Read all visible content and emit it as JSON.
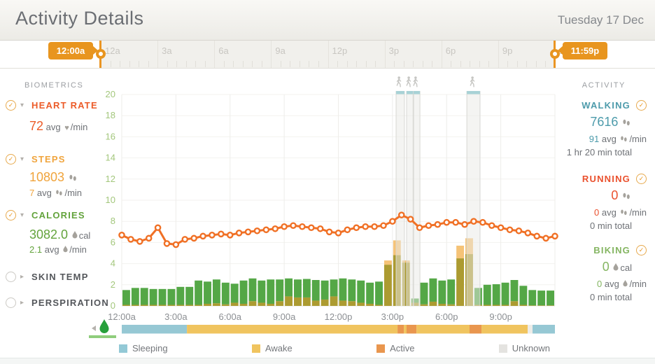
{
  "header": {
    "title": "Activity Details",
    "date": "Tuesday 17 Dec"
  },
  "slider": {
    "start_label": "12:00a",
    "end_label": "11:59p",
    "hour_labels": [
      "12a",
      "3a",
      "6a",
      "9a",
      "12p",
      "3p",
      "6p",
      "9p",
      "12a"
    ]
  },
  "biometrics": {
    "section_label": "BIOMETRICS",
    "heart_rate": {
      "label": "HEART RATE",
      "color": "#ec5b28",
      "value": "72",
      "avg_word": "avg",
      "unit": "/min",
      "checked": true
    },
    "steps": {
      "label": "STEPS",
      "color": "#f0a43c",
      "value": "10803",
      "avg_value": "7",
      "avg_word": "avg",
      "unit": "/min",
      "checked": true
    },
    "calories": {
      "label": "CALORIES",
      "color": "#63a33c",
      "value": "3082.0",
      "value_unit": "cal",
      "avg_value": "2.1",
      "avg_word": "avg",
      "unit": "/min",
      "checked": true
    },
    "skin_temp": {
      "label": "SKIN TEMP",
      "color": "#54575b",
      "checked": false
    },
    "perspiration": {
      "label": "PERSPIRATION",
      "color": "#54575b",
      "checked": false
    }
  },
  "activity": {
    "section_label": "ACTIVITY",
    "walking": {
      "label": "WALKING",
      "color": "#4d9bab",
      "value": "7616",
      "avg_value": "91",
      "avg_word": "avg",
      "unit": "/min",
      "total": "1 hr 20 min total",
      "checked": true
    },
    "running": {
      "label": "RUNNING",
      "color": "#ea512e",
      "value": "0",
      "avg_value": "0",
      "avg_word": "avg",
      "unit": "/min",
      "total": "0 min total",
      "checked": true
    },
    "biking": {
      "label": "BIKING",
      "color": "#84b561",
      "value": "0",
      "value_unit": "cal",
      "avg_value": "0",
      "avg_word": "avg",
      "unit": "/min",
      "total": "0 min total",
      "checked": true
    }
  },
  "chart_data": {
    "type": "composite",
    "x_axis": {
      "start_hour": 0,
      "end_hour": 24,
      "tick_hours": [
        0,
        3,
        6,
        9,
        12,
        15,
        18,
        21
      ],
      "tick_labels": [
        "12:00a",
        "3:00a",
        "6:00a",
        "9:00a",
        "12:00p",
        "3:00p",
        "6:00p",
        "9:00p"
      ]
    },
    "y_axis": {
      "min": 0,
      "max": 20,
      "ticks": [
        0,
        2,
        4,
        6,
        8,
        10,
        12,
        14,
        16,
        18,
        20
      ],
      "label_color": "#a3c77c"
    },
    "bars": {
      "interval_minutes": 30,
      "series": [
        {
          "name": "steps-overlap",
          "color": "#ac9b31",
          "values": [
            0.1,
            0.1,
            0.1,
            0.1,
            0.1,
            0.1,
            0.1,
            0.1,
            0.1,
            0.2,
            0.25,
            0.15,
            0.3,
            0.2,
            0.45,
            0.3,
            0.2,
            0.45,
            0.9,
            0.8,
            0.8,
            0.5,
            0.6,
            0.9,
            0.5,
            0.45,
            0.3,
            0.2,
            0.1,
            3.9,
            4.8,
            4.1,
            0.3,
            0.15,
            0.4,
            0.2,
            0.15,
            4.5,
            4.9,
            0.1,
            0.1,
            0.1,
            0.1,
            0.45,
            0.1,
            0.05,
            0.05,
            0.05
          ]
        },
        {
          "name": "calories",
          "color": "#54a746",
          "values": [
            1.4,
            1.6,
            1.6,
            1.5,
            1.5,
            1.5,
            1.7,
            1.7,
            2.3,
            2.1,
            2.25,
            2.05,
            1.8,
            2.2,
            2.15,
            2.1,
            2.3,
            2.05,
            1.7,
            1.7,
            1.75,
            1.95,
            1.8,
            1.6,
            2.1,
            2.05,
            2.1,
            2.0,
            2.2,
            0,
            0,
            0,
            0.4,
            2.05,
            2.2,
            2.2,
            2.35,
            0,
            0,
            1.6,
            1.9,
            1.95,
            2.1,
            2.0,
            1.8,
            1.45,
            1.4,
            1.4
          ]
        },
        {
          "name": "steps-excess",
          "color": "#f5c377",
          "values": [
            0,
            0,
            0,
            0,
            0,
            0,
            0,
            0,
            0,
            0,
            0,
            0,
            0,
            0,
            0,
            0,
            0,
            0,
            0,
            0,
            0,
            0,
            0,
            0,
            0,
            0,
            0,
            0,
            0,
            0.4,
            1.4,
            0.2,
            0,
            0,
            0,
            0,
            0,
            1.2,
            1.5,
            0,
            0,
            0,
            0,
            0,
            0,
            0,
            0,
            0
          ]
        }
      ]
    },
    "heart_rate_line": {
      "color": "#f07025",
      "interval_minutes": 30,
      "values": [
        6.7,
        6.3,
        6.1,
        6.4,
        7.4,
        5.9,
        5.8,
        6.3,
        6.4,
        6.6,
        6.7,
        6.8,
        6.7,
        6.9,
        7.0,
        7.1,
        7.2,
        7.3,
        7.5,
        7.6,
        7.5,
        7.4,
        7.3,
        7.0,
        6.9,
        7.2,
        7.4,
        7.5,
        7.5,
        7.6,
        8.0,
        8.6,
        8.2,
        7.4,
        7.6,
        7.7,
        7.9,
        7.9,
        7.7,
        8.0,
        7.9,
        7.6,
        7.4,
        7.2,
        7.1,
        6.9,
        6.6,
        6.4,
        6.6
      ]
    },
    "unknown_bands": {
      "fill": "#e9e9e6",
      "cap_color": "#a8d2d6",
      "edge_color": "#d8d8d4",
      "ranges_hours": [
        [
          15.2,
          15.66
        ],
        [
          15.78,
          16.14
        ],
        [
          16.17,
          16.52
        ],
        [
          19.12,
          19.85
        ]
      ],
      "walker_hours": [
        15.36,
        15.9,
        16.28,
        19.43
      ]
    },
    "activity_band": {
      "colors": {
        "sleeping": "#96c8d4",
        "awake": "#f0c45f",
        "active": "#e9964e",
        "unknown": "#edece8"
      },
      "segments": [
        [
          "sleeping",
          0,
          3.61
        ],
        [
          "awake",
          3.61,
          15.28
        ],
        [
          "active",
          15.28,
          15.63
        ],
        [
          "awake",
          15.63,
          15.78
        ],
        [
          "active",
          15.78,
          16.33
        ],
        [
          "awake",
          16.33,
          19.27
        ],
        [
          "active",
          19.27,
          19.93
        ],
        [
          "awake",
          19.93,
          22.49
        ],
        [
          "unknown",
          22.49,
          22.76
        ],
        [
          "sleeping",
          22.76,
          24
        ]
      ]
    },
    "legend": [
      {
        "label": "Sleeping",
        "key": "sleeping",
        "color": "#93c9d6"
      },
      {
        "label": "Awake",
        "key": "awake",
        "color": "#f0c45f"
      },
      {
        "label": "Active",
        "key": "active",
        "color": "#e9964e"
      },
      {
        "label": "Unknown",
        "key": "unknown",
        "color": "#e4e3e0"
      }
    ]
  }
}
